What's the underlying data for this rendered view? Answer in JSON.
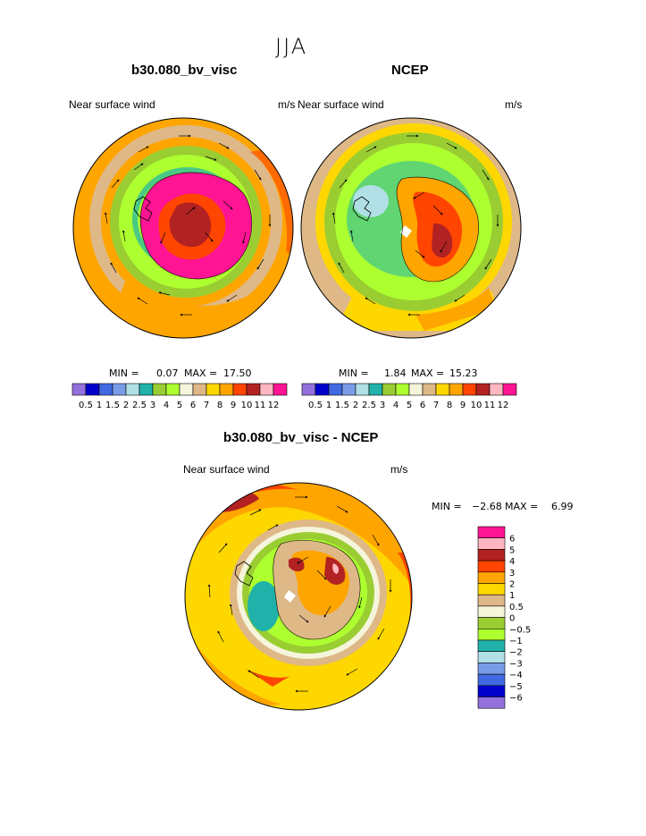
{
  "figure": {
    "season": "JJA",
    "panels": [
      {
        "id": "model",
        "title": "b30.080_bv_visc",
        "left_label": "Near surface wind",
        "units": "m/s",
        "min_text": "MIN =",
        "min_value": "0.07",
        "max_text": "MAX =",
        "max_value": "17.50"
      },
      {
        "id": "obs",
        "title": "NCEP",
        "left_label": "Near surface wind",
        "units": "m/s",
        "min_text": "MIN =",
        "min_value": "1.84",
        "max_text": "MAX =",
        "max_value": "15.23"
      },
      {
        "id": "diff",
        "title": "b30.080_bv_visc - NCEP",
        "left_label": "Near surface wind",
        "units": "m/s",
        "min_text": "MIN =",
        "min_value": "−2.68",
        "max_text": "MAX =",
        "max_value": "6.99"
      }
    ]
  },
  "colorbars": {
    "speed": {
      "labels": [
        "0.5",
        "1",
        "1.5",
        "2",
        "2.5",
        "3",
        "4",
        "5",
        "6",
        "7",
        "8",
        "9",
        "10",
        "11",
        "12"
      ],
      "colors": [
        "#9370db",
        "#0000cd",
        "#4169e1",
        "#7a9be8",
        "#b0e0e6",
        "#20b2aa",
        "#9acd32",
        "#adff2f",
        "#f5f5dc",
        "#deb887",
        "#ffd700",
        "#ffa500",
        "#ff4500",
        "#b22222",
        "#ffb6c1",
        "#ff1493"
      ]
    },
    "diff": {
      "labels": [
        "6",
        "5",
        "4",
        "3",
        "2",
        "1",
        "0.5",
        "0",
        "−0.5",
        "−1",
        "−2",
        "−3",
        "−4",
        "−5",
        "−6"
      ],
      "colors": [
        "#ff1493",
        "#ffb6c1",
        "#b22222",
        "#ff4500",
        "#ffa500",
        "#ffd700",
        "#deb887",
        "#f5f5dc",
        "#9acd32",
        "#adff2f",
        "#20b2aa",
        "#b0e0e6",
        "#7a9be8",
        "#4169e1",
        "#0000cd",
        "#9370db"
      ]
    }
  }
}
